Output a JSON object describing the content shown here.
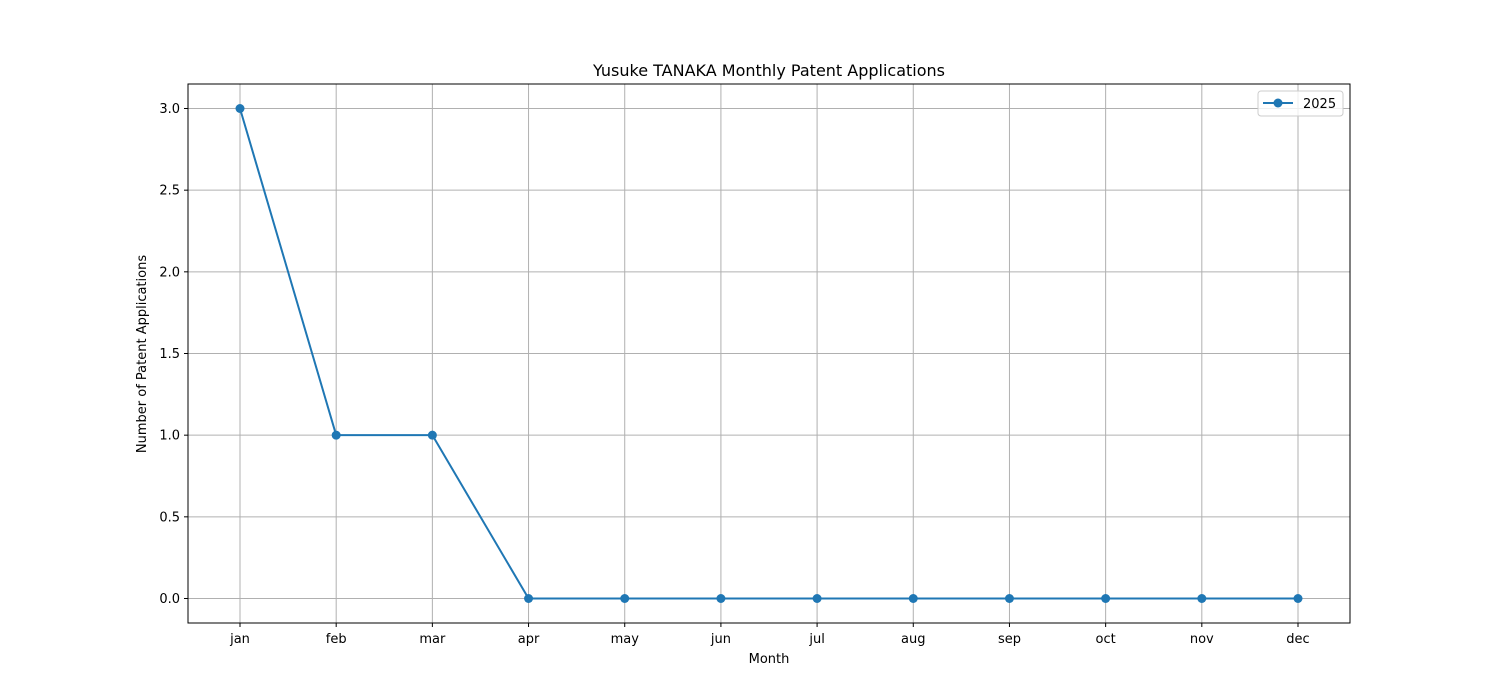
{
  "chart_data": {
    "type": "line",
    "title": "Yusuke TANAKA Monthly Patent Applications",
    "xlabel": "Month",
    "ylabel": "Number of Patent Applications",
    "categories": [
      "jan",
      "feb",
      "mar",
      "apr",
      "may",
      "jun",
      "jul",
      "aug",
      "sep",
      "oct",
      "nov",
      "dec"
    ],
    "series": [
      {
        "name": "2025",
        "values": [
          3,
          1,
          1,
          0,
          0,
          0,
          0,
          0,
          0,
          0,
          0,
          0
        ],
        "color": "#1f77b4",
        "marker": "circle"
      }
    ],
    "ylim": [
      -0.15,
      3.15
    ],
    "yticks": [
      0.0,
      0.5,
      1.0,
      1.5,
      2.0,
      2.5,
      3.0
    ],
    "ytick_labels": [
      "0.0",
      "0.5",
      "1.0",
      "1.5",
      "2.0",
      "2.5",
      "3.0"
    ],
    "grid": true,
    "legend_position": "top-right"
  }
}
